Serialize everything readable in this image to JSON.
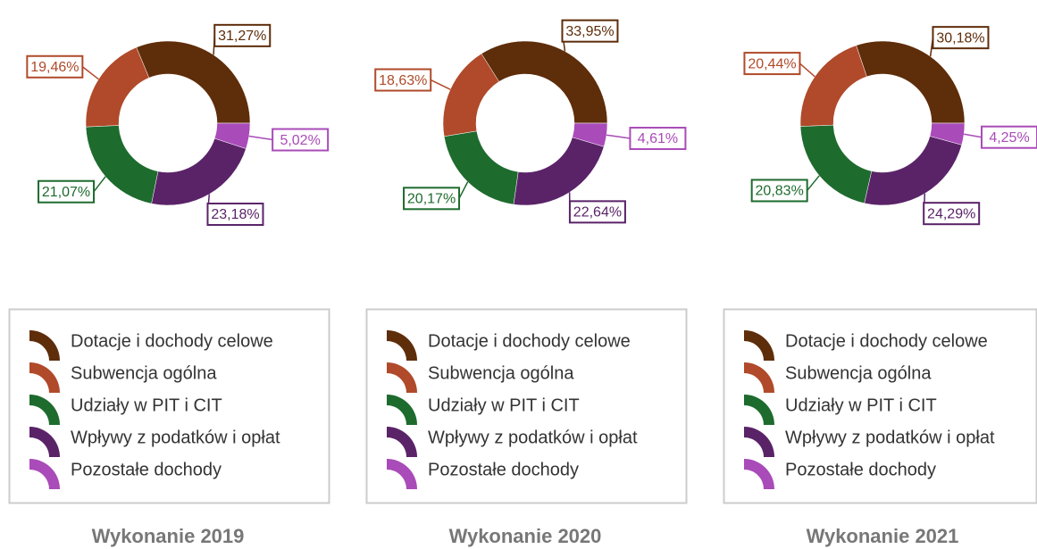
{
  "chart_data": [
    {
      "type": "pie",
      "title": "Wykonanie 2019",
      "categories": [
        "Dotacje i dochody celowe",
        "Subwencja ogólna",
        "Udziały w PIT i CIT",
        "Wpływy z podatków i opłat",
        "Pozostałe dochody"
      ],
      "values": [
        31.27,
        19.46,
        21.07,
        23.18,
        5.02
      ],
      "value_labels": [
        "31,27%",
        "19,46%",
        "21,07%",
        "23,18%",
        "5,02%"
      ],
      "colors": [
        "#5e2d0a",
        "#b04a2a",
        "#1e6b2e",
        "#5a2368",
        "#a94bb8"
      ]
    },
    {
      "type": "pie",
      "title": "Wykonanie 2020",
      "categories": [
        "Dotacje i dochody celowe",
        "Subwencja ogólna",
        "Udziały w PIT i CIT",
        "Wpływy z podatków i opłat",
        "Pozostałe dochody"
      ],
      "values": [
        33.95,
        18.63,
        20.17,
        22.64,
        4.61
      ],
      "value_labels": [
        "33,95%",
        "18,63%",
        "20,17%",
        "22,64%",
        "4,61%"
      ],
      "colors": [
        "#5e2d0a",
        "#b04a2a",
        "#1e6b2e",
        "#5a2368",
        "#a94bb8"
      ]
    },
    {
      "type": "pie",
      "title": "Wykonanie 2021",
      "categories": [
        "Dotacje i dochody celowe",
        "Subwencja ogólna",
        "Udziały w PIT i CIT",
        "Wpływy z podatków i opłat",
        "Pozostałe dochody"
      ],
      "values": [
        30.18,
        20.44,
        20.83,
        24.29,
        4.25
      ],
      "value_labels": [
        "30,18%",
        "20,44%",
        "20,83%",
        "24,29%",
        "4,25%"
      ],
      "colors": [
        "#5e2d0a",
        "#b04a2a",
        "#1e6b2e",
        "#5a2368",
        "#a94bb8"
      ]
    }
  ]
}
